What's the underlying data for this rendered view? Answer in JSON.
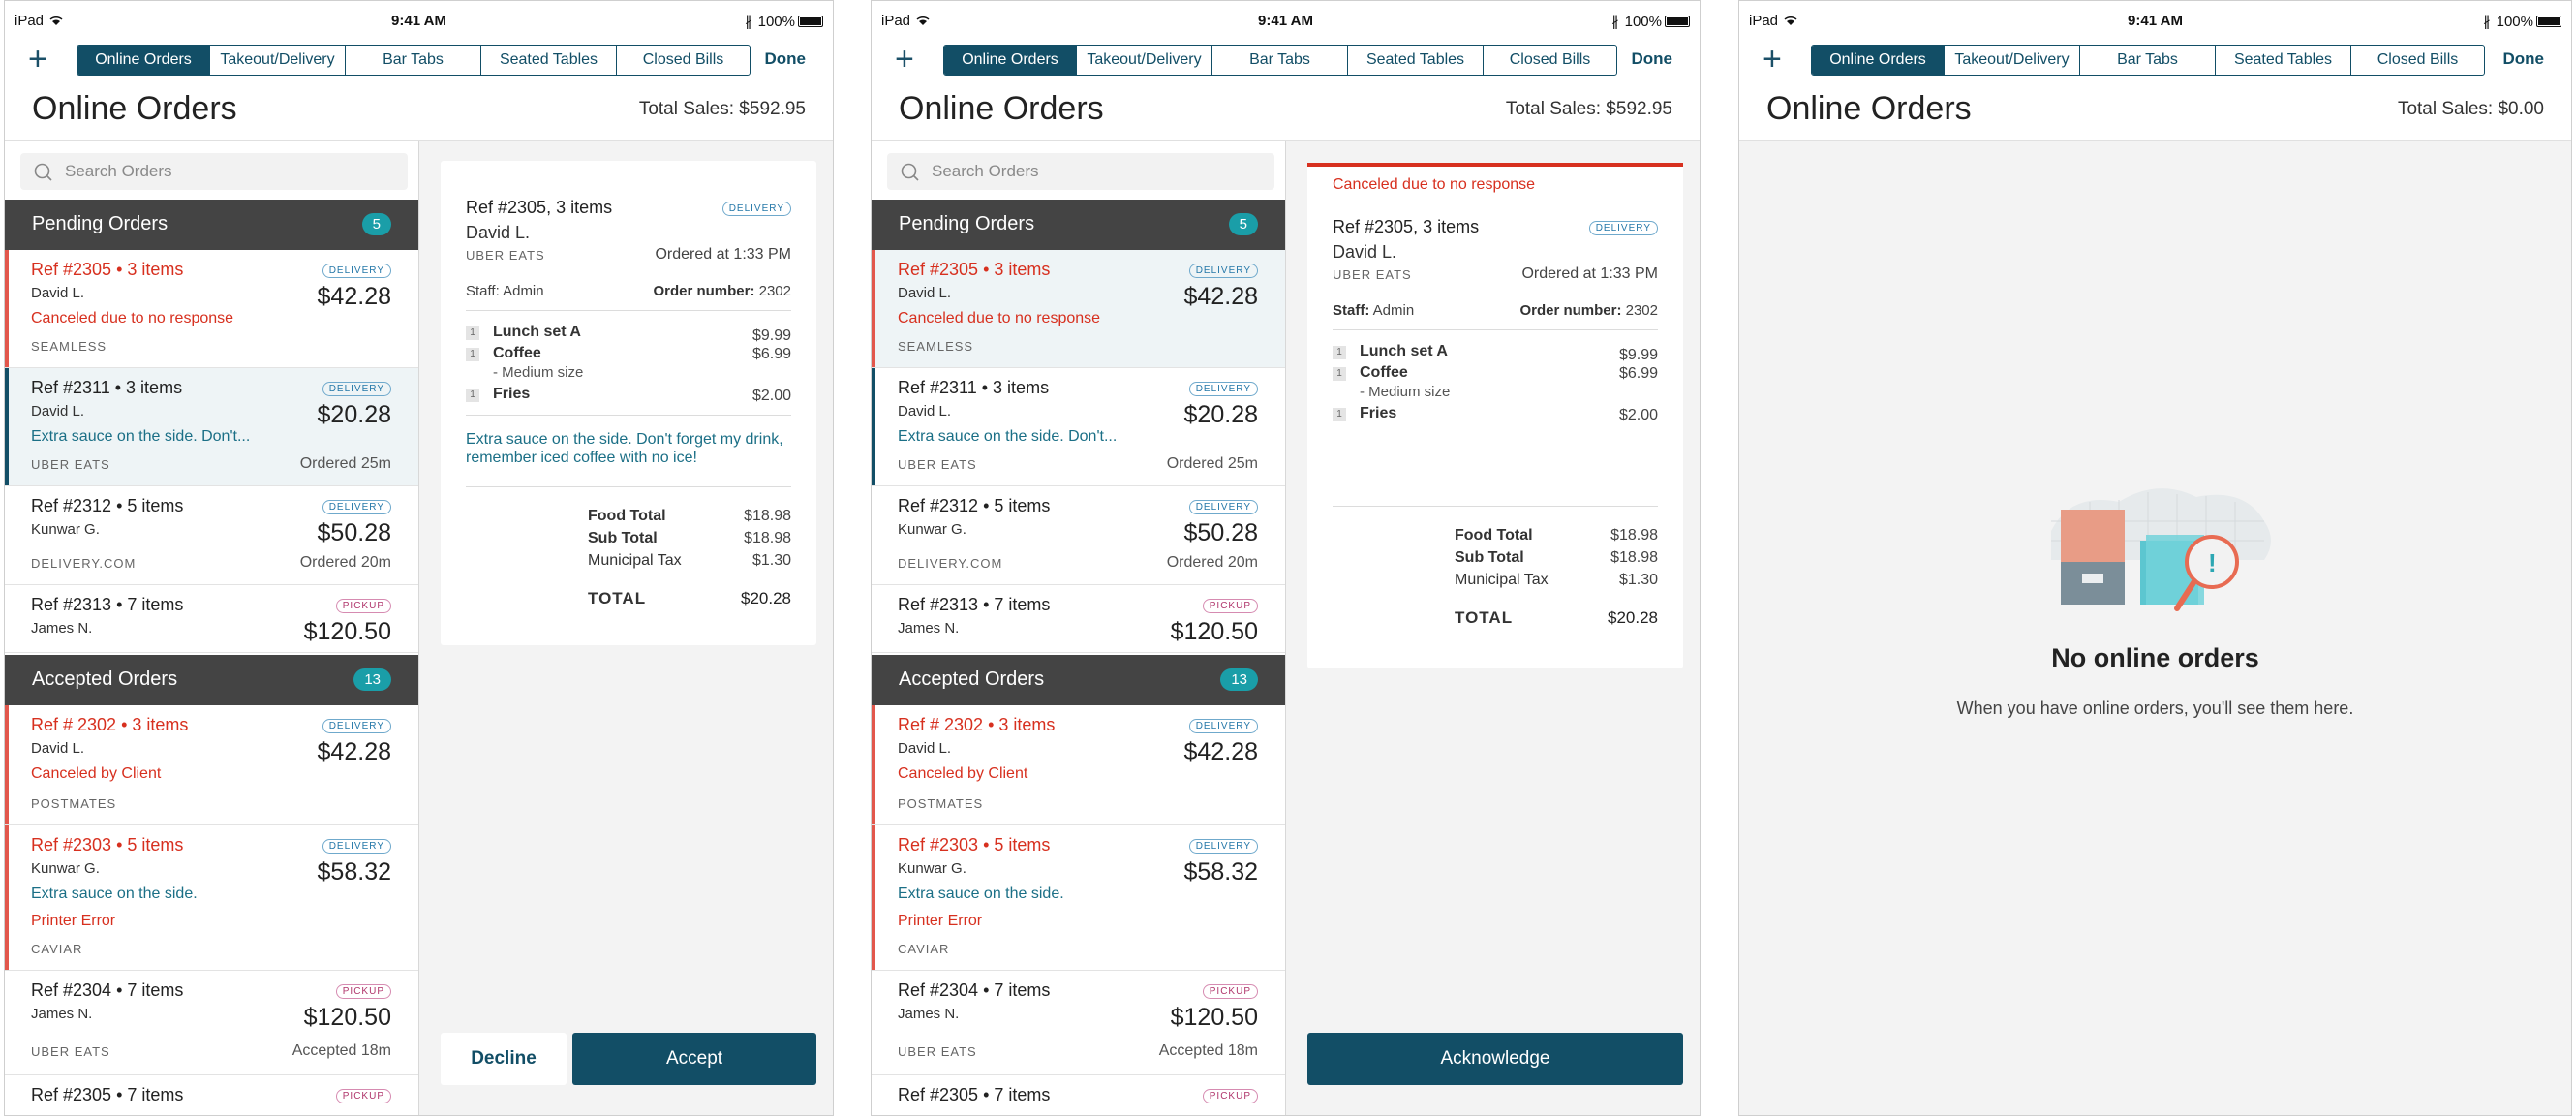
{
  "status": {
    "device": "iPad",
    "time": "9:41 AM",
    "battery": "100%"
  },
  "nav": {
    "tabs": [
      "Online Orders",
      "Takeout/Delivery",
      "Bar Tabs",
      "Seated Tables",
      "Closed Bills"
    ],
    "done": "Done"
  },
  "page": {
    "title": "Online Orders",
    "total_sales": "Total Sales: $592.95",
    "total_sales_empty": "Total Sales: $0.00"
  },
  "search": {
    "placeholder": "Search Orders"
  },
  "pending": {
    "title": "Pending Orders",
    "count": "5"
  },
  "accepted": {
    "title": "Accepted Orders",
    "count": "13"
  },
  "orders": [
    {
      "ref": "Ref #2305",
      "items": "3 items",
      "customer": "David L.",
      "note": "Canceled due to no response",
      "source": "SEAMLESS",
      "badge": "DELIVERY",
      "price": "$42.28",
      "time": ""
    },
    {
      "ref": "Ref #2311",
      "items": "3 items",
      "customer": "David L.",
      "note": "Extra sauce on the side. Don't...",
      "source": "UBER EATS",
      "badge": "DELIVERY",
      "price": "$20.28",
      "time": "Ordered 25m"
    },
    {
      "ref": "Ref #2312",
      "items": "5 items",
      "customer": "Kunwar G.",
      "note": "",
      "source": "DELIVERY.COM",
      "badge": "DELIVERY",
      "price": "$50.28",
      "time": "Ordered 20m"
    },
    {
      "ref": "Ref #2313",
      "items": "7 items",
      "customer": "James N.",
      "note": "",
      "source": "",
      "badge": "PICKUP",
      "price": "$120.50",
      "time": ""
    }
  ],
  "accepted_orders": [
    {
      "ref": "Ref # 2302",
      "items": "3 items",
      "customer": "David L.",
      "note": "Canceled by Client",
      "source": "POSTMATES",
      "badge": "DELIVERY",
      "price": "$42.28"
    },
    {
      "ref": "Ref #2303",
      "items": "5 items",
      "customer": "Kunwar G.",
      "note": "Extra sauce on the side.",
      "note2": "Printer Error",
      "source": "CAVIAR",
      "badge": "DELIVERY",
      "price": "$58.32"
    },
    {
      "ref": "Ref #2304",
      "items": "7 items",
      "customer": "James N.",
      "source": "UBER EATS",
      "badge": "PICKUP",
      "price": "$120.50",
      "time": "Accepted 18m"
    },
    {
      "ref": "Ref #2305",
      "items": "7 items",
      "badge": "PICKUP"
    }
  ],
  "detail": {
    "cancel_message": "Canceled due to no response",
    "ref": "Ref #2305, 3 items",
    "badge": "DELIVERY",
    "customer": "David L.",
    "source": "UBER EATS",
    "ordered_at": "Ordered at 1:33 PM",
    "staff_label": "Staff:",
    "staff": "Admin",
    "order_number_label": "Order number:",
    "order_number": "2302",
    "items": [
      {
        "qty": "1",
        "name": "Lunch set A",
        "price": "$9.99",
        "mod": ""
      },
      {
        "qty": "1",
        "name": "Coffee",
        "price": "$6.99",
        "mod": "- Medium size"
      },
      {
        "qty": "1",
        "name": "Fries",
        "price": "$2.00",
        "mod": ""
      }
    ],
    "instructions": "Extra sauce on the side. Don't forget my drink, remember iced coffee with no ice!",
    "food_total_label": "Food Total",
    "food_total": "$18.98",
    "sub_total_label": "Sub Total",
    "sub_total": "$18.98",
    "tax_label": "Municipal Tax",
    "tax": "$1.30",
    "total_label": "TOTAL",
    "total": "$20.28"
  },
  "actions": {
    "decline": "Decline",
    "accept": "Accept",
    "acknowledge": "Acknowledge"
  },
  "empty": {
    "title": "No online orders",
    "subtitle": "When you have online orders, you'll see them here."
  },
  "colors": {
    "primary": "#124e66",
    "red": "#d7301f",
    "teal": "#1a9ea8",
    "header": "#444444"
  }
}
